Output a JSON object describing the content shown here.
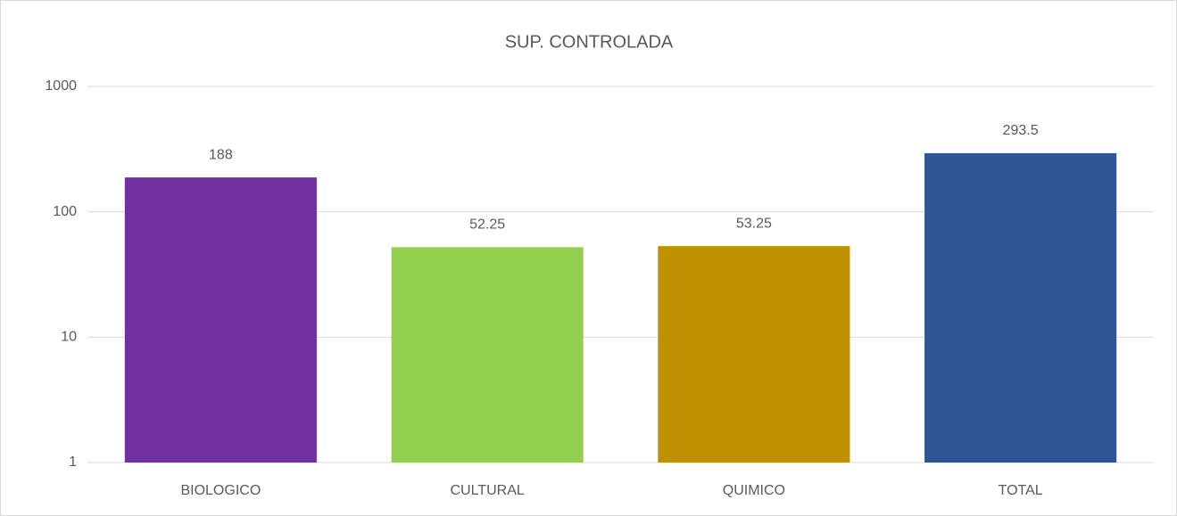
{
  "chart_data": {
    "type": "bar",
    "title": "SUP. CONTROLADA",
    "categories": [
      "BIOLOGICO",
      "CULTURAL",
      "QUIMICO",
      "TOTAL"
    ],
    "values": [
      188,
      52.25,
      53.25,
      293.5
    ],
    "colors": [
      "#7030a0",
      "#92d050",
      "#bf9000",
      "#2f5597"
    ],
    "ylim": [
      1,
      1000
    ],
    "yticks": [
      1,
      10,
      100,
      1000
    ],
    "log_scale": true,
    "grid": true,
    "data_labels": true
  }
}
